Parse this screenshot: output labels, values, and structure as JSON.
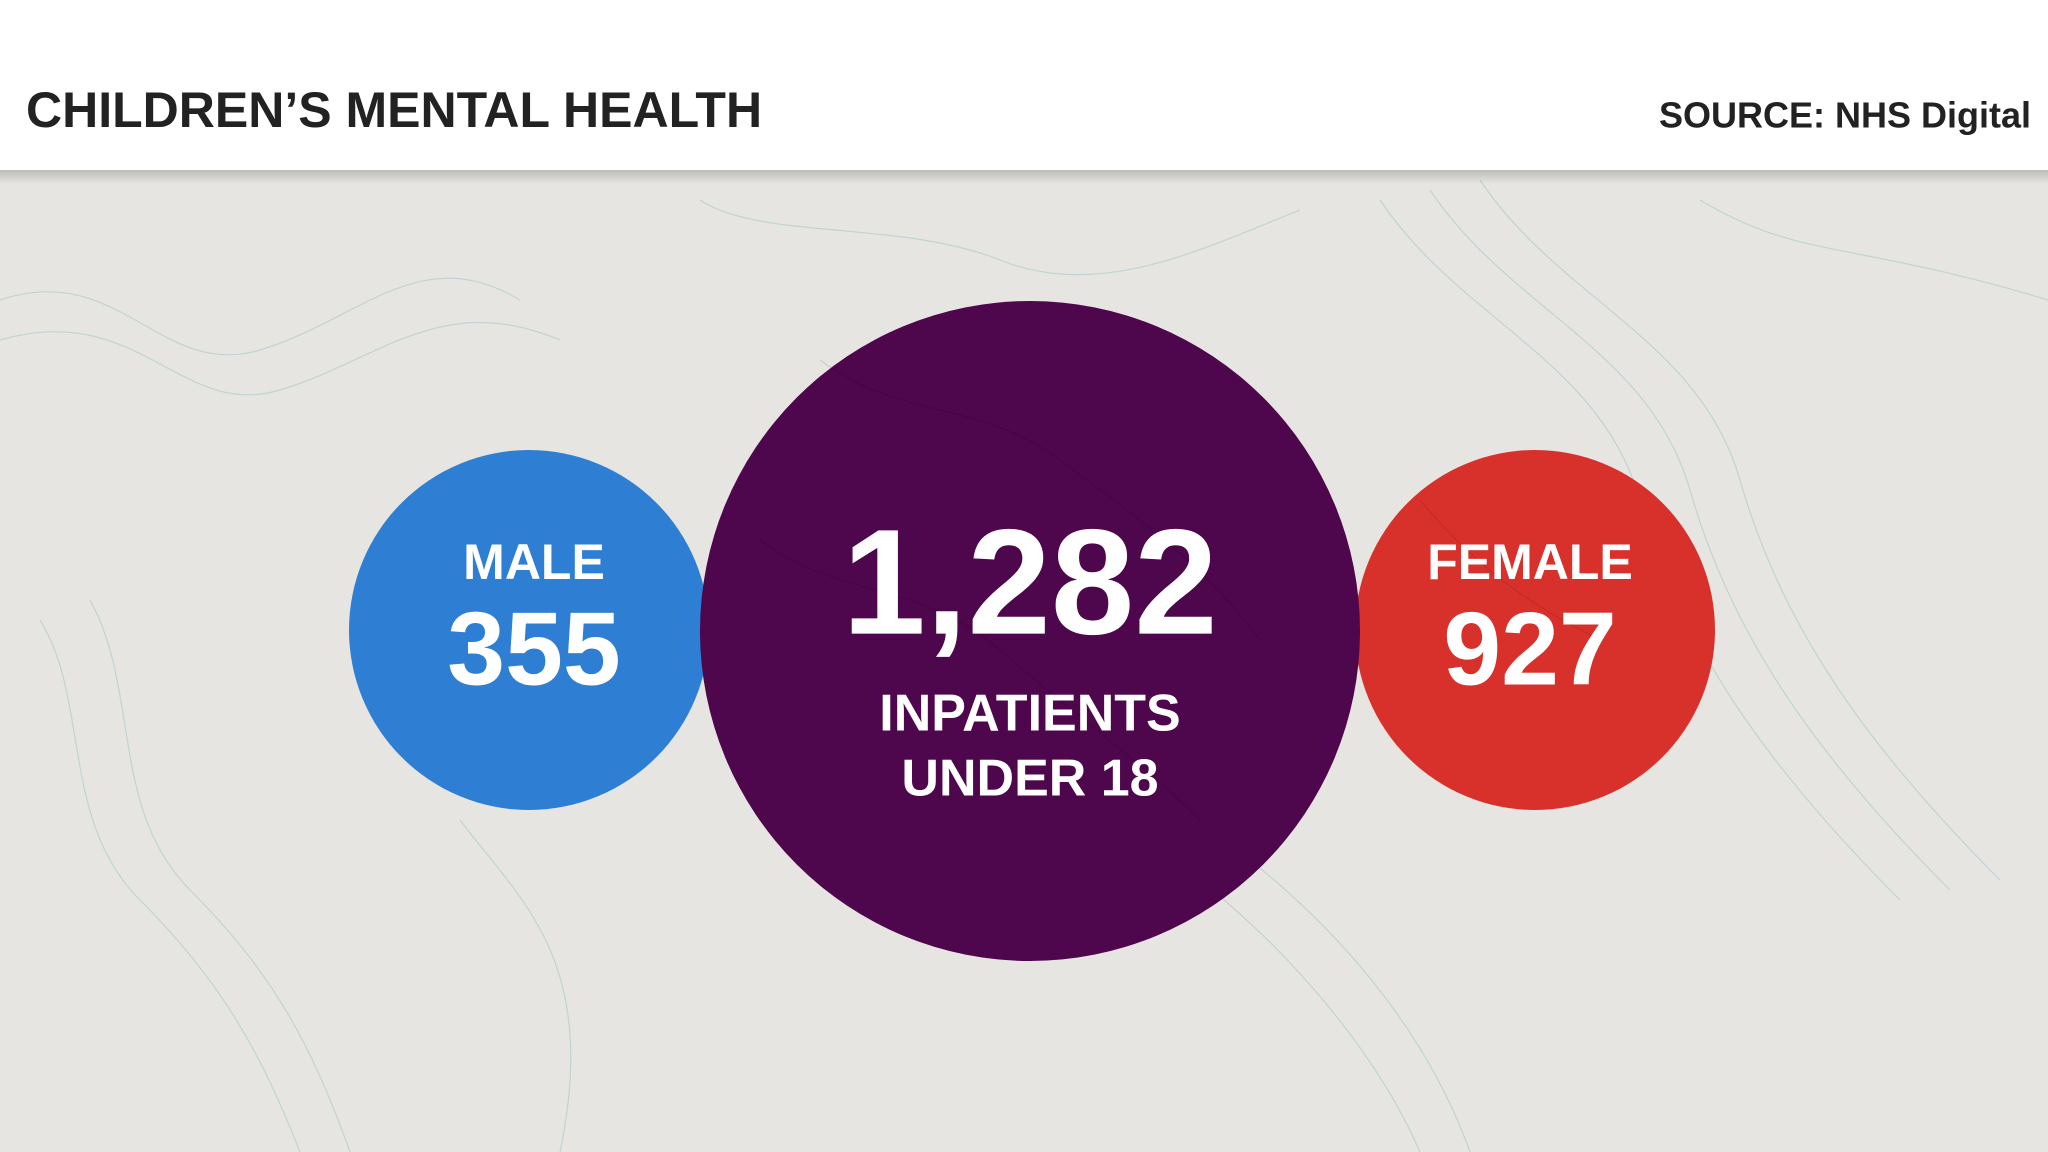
{
  "header": {
    "title": "CHILDREN’S MENTAL HEALTH",
    "source": "SOURCE: NHS Digital"
  },
  "circles": [
    {
      "label": "MALE",
      "value": "355"
    },
    {
      "value": "1,282",
      "caption": [
        "INPATIENTS",
        "UNDER 18"
      ]
    },
    {
      "label": "FEMALE",
      "value": "927"
    }
  ]
}
